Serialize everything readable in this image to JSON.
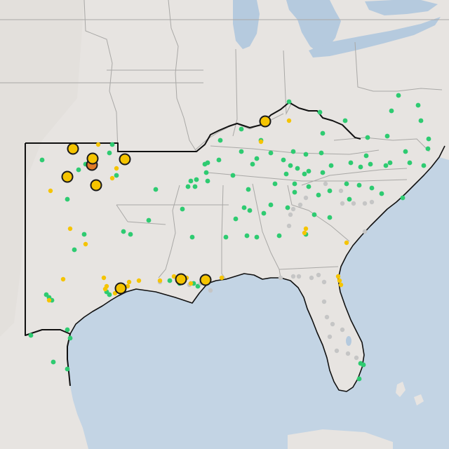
{
  "map": {
    "colors": {
      "land": "#e7e4e1",
      "land_west": "#e2dfdb",
      "water": "#c3d4e4",
      "lake": "#b5cade",
      "state_line": "#a9a8a6",
      "region_outline": "#111111",
      "marker_green": "#2ecb71",
      "marker_yellow": "#f5c400",
      "marker_gray": "#c5c5c5",
      "marker_orange": "#e07b28",
      "marker_stroke": "#1a1a1a"
    },
    "legend_note": "",
    "marker_styles": [
      "green-small",
      "yellow-small",
      "gray-small",
      "yellow-large",
      "orange-large"
    ]
  }
}
